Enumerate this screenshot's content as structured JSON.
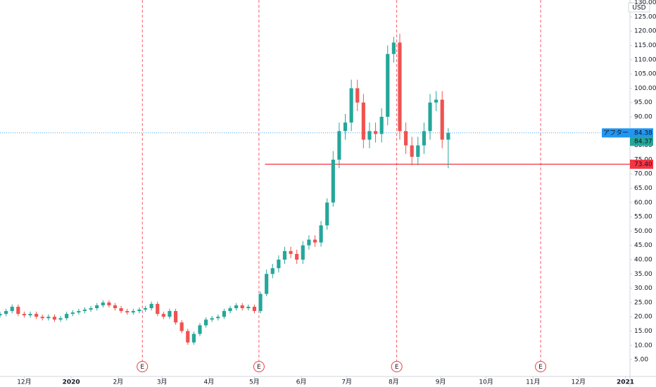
{
  "chart_data": {
    "type": "candlestick",
    "currency": "USD",
    "up_color": "#26a69a",
    "down_color": "#ef5350",
    "x": [
      -16,
      -12,
      -8,
      -4,
      0,
      4,
      8,
      12,
      16,
      20,
      24,
      28,
      32,
      36,
      40,
      44,
      48,
      52,
      56,
      60,
      64,
      68,
      72,
      76,
      80,
      84,
      88,
      92,
      96,
      100,
      104,
      108,
      112,
      116,
      120,
      124,
      128,
      132,
      136,
      140,
      144,
      148,
      152,
      156,
      160,
      164,
      168,
      172,
      176,
      180,
      184,
      188,
      192,
      196,
      200,
      204,
      208,
      212,
      216,
      220,
      224,
      228,
      232,
      236,
      240,
      244,
      248,
      252,
      256,
      260,
      264,
      268,
      272,
      276,
      280
    ],
    "open": [
      20.5,
      21,
      22,
      23.5,
      21,
      20.5,
      21,
      20,
      19.5,
      20,
      19,
      19.5,
      21,
      21.5,
      22,
      22.5,
      23,
      24,
      25,
      24,
      23,
      22,
      21.5,
      22,
      22.5,
      23,
      24.5,
      21,
      20,
      22,
      18,
      15,
      11,
      14,
      17,
      19,
      19.5,
      20,
      22,
      23,
      24,
      23,
      23.5,
      22,
      28,
      35,
      37,
      40,
      43,
      42,
      40,
      45,
      47,
      46,
      52,
      60,
      75,
      85,
      88,
      100,
      95,
      82,
      85,
      84,
      90,
      112,
      116,
      85,
      80,
      76,
      80,
      85,
      95,
      96,
      82
    ],
    "high": [
      21.8,
      22.8,
      24.3,
      24.3,
      21.8,
      21.8,
      21.8,
      20.8,
      20.8,
      20.8,
      20.3,
      21.8,
      22.3,
      22.8,
      23.3,
      23.8,
      24.8,
      25.8,
      25.8,
      24.8,
      23.8,
      22.8,
      22.8,
      23.3,
      23.8,
      25.3,
      25.3,
      21.8,
      22.8,
      22.8,
      18.8,
      15.8,
      14.8,
      17.8,
      19.8,
      20.3,
      20.8,
      22.8,
      23.8,
      24.8,
      24.8,
      24.3,
      24.3,
      28.8,
      36.5,
      38.5,
      41.5,
      44.5,
      44.5,
      43.5,
      46.5,
      48.5,
      48.5,
      53.5,
      61.5,
      78,
      88,
      91,
      103,
      103,
      98,
      88,
      88,
      93,
      115,
      118,
      119,
      88,
      83,
      83,
      88,
      98,
      99,
      99,
      86
    ],
    "low": [
      19.7,
      20.2,
      21.2,
      20.2,
      19.7,
      19.7,
      19.2,
      18.7,
      18.7,
      18.2,
      18.2,
      18.7,
      20.2,
      20.7,
      21.2,
      21.7,
      22.2,
      23.2,
      23.2,
      22.2,
      21.2,
      20.7,
      20.7,
      21.2,
      21.7,
      22.2,
      20.2,
      19.2,
      19.2,
      17.2,
      14.2,
      10.2,
      10.2,
      13.2,
      16.2,
      18.2,
      18.7,
      19.2,
      21.2,
      22.2,
      22.2,
      22.2,
      21.2,
      21.2,
      27.2,
      33.5,
      35.5,
      38.5,
      40.5,
      38.5,
      38.5,
      43.5,
      44.5,
      44.5,
      50.5,
      58.5,
      72,
      82,
      85,
      92,
      79,
      79,
      81,
      81,
      87,
      109,
      82,
      77,
      73,
      73,
      77,
      82,
      92,
      79,
      72
    ],
    "close": [
      21,
      22,
      23.5,
      21,
      20.5,
      21,
      20,
      19.5,
      20,
      19,
      19.5,
      21,
      21.5,
      22,
      22.5,
      23,
      24,
      25,
      24,
      23,
      22,
      21.5,
      22,
      22.5,
      23,
      24.5,
      21,
      20,
      22,
      18,
      15,
      11,
      14,
      17,
      19,
      19.5,
      20,
      22,
      23,
      24,
      23,
      23.5,
      22,
      28,
      35,
      37,
      40,
      43,
      42,
      40,
      45,
      47,
      46,
      52,
      60,
      75,
      85,
      88,
      100,
      95,
      82,
      85,
      84,
      90,
      112,
      116,
      85,
      80,
      76,
      80,
      85,
      95,
      96,
      82,
      84.38
    ],
    "xlim": [
      -16,
      400
    ],
    "xticks": [
      {
        "value": 0,
        "label": "12月"
      },
      {
        "value": 31,
        "label": "2020"
      },
      {
        "value": 62,
        "label": "2月"
      },
      {
        "value": 91,
        "label": "3月"
      },
      {
        "value": 122,
        "label": "4月"
      },
      {
        "value": 152,
        "label": "5月"
      },
      {
        "value": 183,
        "label": "6月"
      },
      {
        "value": 213,
        "label": "7月"
      },
      {
        "value": 244,
        "label": "8月"
      },
      {
        "value": 275,
        "label": "9月"
      },
      {
        "value": 305,
        "label": "10月"
      },
      {
        "value": 336,
        "label": "11月"
      },
      {
        "value": 366,
        "label": "12月"
      },
      {
        "value": 397,
        "label": "2021"
      }
    ],
    "ylim": [
      -0.9,
      130.9
    ],
    "yticks": [
      {
        "value": 5,
        "label": "5.00"
      },
      {
        "value": 10,
        "label": "10.00"
      },
      {
        "value": 15,
        "label": "15.00"
      },
      {
        "value": 20,
        "label": "20.00"
      },
      {
        "value": 25,
        "label": "25.00"
      },
      {
        "value": 30,
        "label": "30.00"
      },
      {
        "value": 35,
        "label": "35.00"
      },
      {
        "value": 40,
        "label": "40.00"
      },
      {
        "value": 45,
        "label": "45.00"
      },
      {
        "value": 50,
        "label": "50.00"
      },
      {
        "value": 55,
        "label": "55.00"
      },
      {
        "value": 60,
        "label": "60.00"
      },
      {
        "value": 65,
        "label": "65.00"
      },
      {
        "value": 70,
        "label": "70.00"
      },
      {
        "value": 75,
        "label": "75.00"
      },
      {
        "value": 80,
        "label": "80.00"
      },
      {
        "value": 85,
        "label": "85.00"
      },
      {
        "value": 90,
        "label": "90.00"
      },
      {
        "value": 95,
        "label": "95.00"
      },
      {
        "value": 100,
        "label": "100.00"
      },
      {
        "value": 105,
        "label": "105.00"
      },
      {
        "value": 110,
        "label": "110.00"
      },
      {
        "value": 115,
        "label": "115.00"
      },
      {
        "value": 120,
        "label": "120.00"
      },
      {
        "value": 125,
        "label": "125.00"
      },
      {
        "value": 130,
        "label": "130.00"
      }
    ],
    "earnings": [
      {
        "x": 78,
        "label": "E"
      },
      {
        "x": 155,
        "label": "E"
      },
      {
        "x": 246,
        "label": "E"
      },
      {
        "x": 341,
        "label": "E"
      }
    ],
    "after_hours": {
      "name": "アフター",
      "value": 84.38,
      "label": "84.38",
      "color": "#2196f3"
    },
    "last_close": {
      "value": 84.37,
      "label": "84.37",
      "color": "#26a69a"
    },
    "level": {
      "value": 73.4,
      "label": "73.40",
      "x": 159,
      "color": "#f23645"
    }
  }
}
